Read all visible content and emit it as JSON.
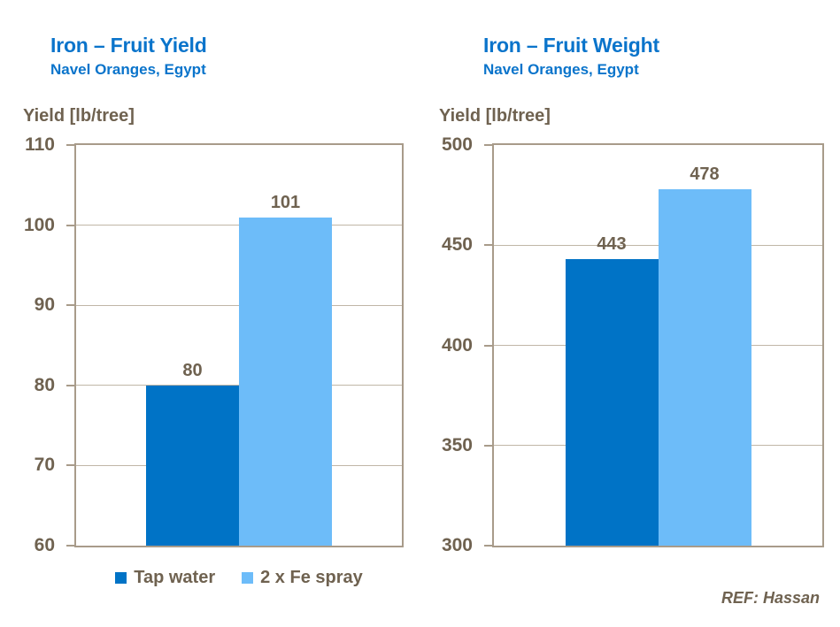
{
  "chart_data": [
    {
      "type": "bar",
      "title": "Iron – Fruit Yield",
      "subtitle": "Navel Oranges, Egypt",
      "ylabel": "Yield [lb/tree]",
      "xlabel": "",
      "categories": [
        "Tap water",
        "2 x Fe spray"
      ],
      "values": [
        80,
        101
      ],
      "value_labels": [
        "80",
        "101"
      ],
      "ylim": [
        60,
        110
      ],
      "yticks": [
        60,
        70,
        80,
        90,
        100,
        110
      ],
      "grid": true,
      "legend_position": "bottom",
      "series_colors": [
        "#0073C6",
        "#6DBCF9"
      ]
    },
    {
      "type": "bar",
      "title": "Iron – Fruit Weight",
      "subtitle": "Navel Oranges, Egypt",
      "ylabel": "Yield [lb/tree]",
      "xlabel": "",
      "categories": [
        "Tap water",
        "2 x Fe spray"
      ],
      "values": [
        443,
        478
      ],
      "value_labels": [
        "443",
        "478"
      ],
      "ylim": [
        300,
        500
      ],
      "yticks": [
        300,
        350,
        400,
        450,
        500
      ],
      "grid": true,
      "legend_position": "none",
      "series_colors": [
        "#0073C6",
        "#6DBCF9"
      ]
    }
  ],
  "legend": {
    "items": [
      {
        "label": "Tap water",
        "color": "#0073C6"
      },
      {
        "label": "2 x Fe spray",
        "color": "#6DBCF9"
      }
    ]
  },
  "footer": {
    "ref": "REF: Hassan"
  },
  "colors": {
    "title_blue": "#0A74CB",
    "text_brown": "#6F6250",
    "plot_border": "#A89B8A",
    "gridline": "#C0B6A7",
    "dark_bar": "#0073C6",
    "light_bar": "#6DBCF9"
  }
}
